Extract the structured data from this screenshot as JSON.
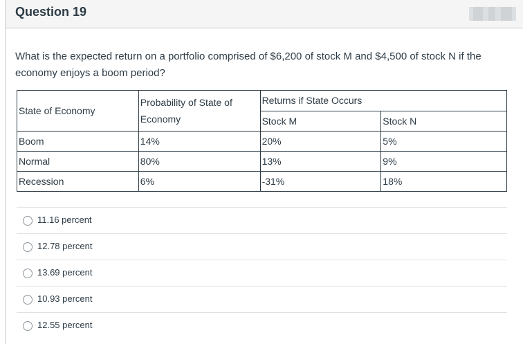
{
  "question": {
    "title": "Question 19",
    "text": "What is the expected return on a portfolio comprised of $6,200 of stock M and $4,500 of stock N if the economy enjoys a boom period?"
  },
  "table": {
    "header": {
      "state": "State of Economy",
      "probability": "Probability of State of Economy",
      "returns": "Returns if State Occurs",
      "stock_m": "Stock M",
      "stock_n": "Stock N"
    },
    "rows": [
      {
        "state": "Boom",
        "probability": "14%",
        "stock_m": "20%",
        "stock_n": "5%"
      },
      {
        "state": "Normal",
        "probability": "80%",
        "stock_m": "13%",
        "stock_n": "9%"
      },
      {
        "state": "Recession",
        "probability": "6%",
        "stock_m": "-31%",
        "stock_n": "18%"
      }
    ]
  },
  "answers": [
    {
      "label": "11.16 percent",
      "selected": false
    },
    {
      "label": "12.78 percent",
      "selected": false
    },
    {
      "label": "13.69 percent",
      "selected": false
    },
    {
      "label": "10.93 percent",
      "selected": false
    },
    {
      "label": "12.55 percent",
      "selected": false
    }
  ]
}
